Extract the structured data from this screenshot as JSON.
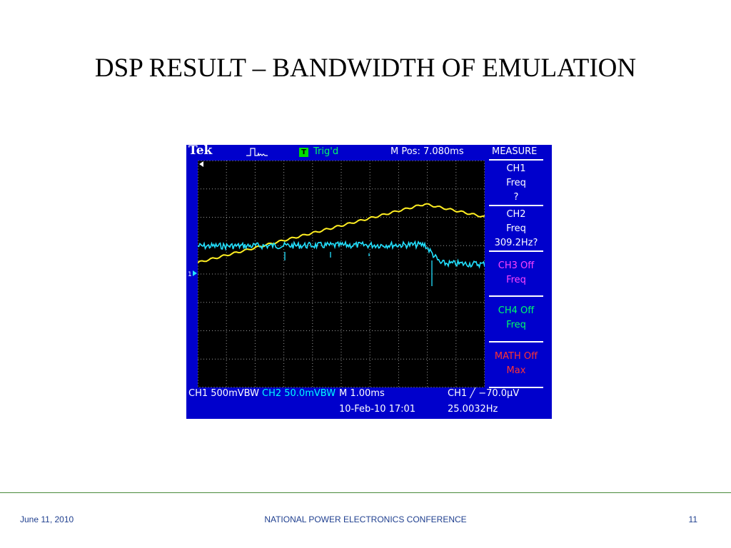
{
  "slide": {
    "title": "DSP RESULT – BANDWIDTH OF EMULATION",
    "footer_date": "June 11, 2010",
    "footer_conference": "NATIONAL POWER ELECTRONICS CONFERENCE",
    "footer_page": "11"
  },
  "scope": {
    "brand": "Tek",
    "trigger_badge": "T",
    "trigger_status": "Trig'd",
    "m_pos": "M Pos: 7.080ms",
    "menu_title": "MEASURE",
    "measure_panels": [
      {
        "lines": [
          "CH1",
          "Freq",
          "?"
        ],
        "color": "#ffffff"
      },
      {
        "lines": [
          "CH2",
          "Freq",
          "309.2Hz?"
        ],
        "color": "#ffffff"
      },
      {
        "lines": [
          "CH3 Off",
          "Freq"
        ],
        "color": "#ff44ff"
      },
      {
        "lines": [
          "CH4 Off",
          "Freq"
        ],
        "color": "#00ff66"
      },
      {
        "lines": [
          "MATH Off",
          "Max"
        ],
        "color": "#ff3333"
      }
    ],
    "ch1_scale": "CH1  500mVBW",
    "ch2_scale": "CH2  50.0mVBW",
    "timebase": "M 1.00ms",
    "trigger_info": "CH1 ╱ −70.0μV",
    "datetime": "10-Feb-10 17:01",
    "trigger_freq": "25.0032Hz",
    "colors": {
      "ch1": "#ffee22",
      "ch2": "#22e0ff",
      "frame": "#0000cc",
      "screen": "#000000"
    }
  }
}
